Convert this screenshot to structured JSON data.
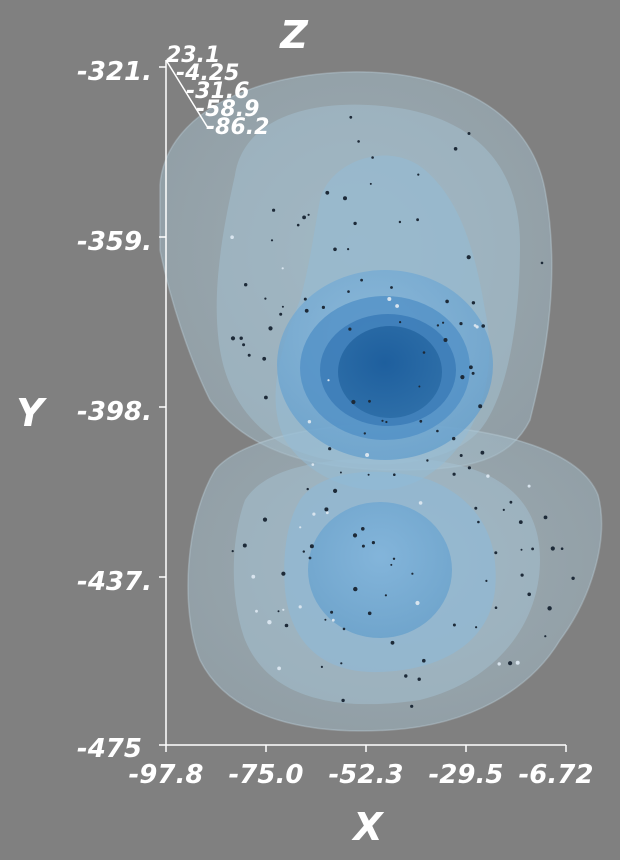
{
  "chart_data": {
    "type": "3d-isosurface",
    "title": "",
    "axes": {
      "x": {
        "label": "X",
        "ticks": [
          "-97.8",
          "-75.0",
          "-52.3",
          "-29.5",
          "-6.72"
        ],
        "range": [
          -97.8,
          -6.72
        ]
      },
      "y": {
        "label": "Y",
        "ticks": [
          "-321.",
          "-359.",
          "-398.",
          "-437.",
          "-475"
        ],
        "range": [
          -475,
          -321
        ]
      },
      "z": {
        "label": "Z",
        "ticks": [
          "23.1",
          "-4.25",
          "-31.6",
          "-58.9",
          "-86.2"
        ],
        "range": [
          -86.2,
          23.1
        ]
      }
    },
    "isosurface_levels": 5,
    "surfaces": [
      {
        "cx": -53.5,
        "cy": -375.3,
        "rx": 45.5,
        "ry": 22.1
      },
      {
        "cx": -51.8,
        "cy": -370.0,
        "rx": 32.0,
        "ry": 30.0
      },
      {
        "cx": -51.8,
        "cy": -380.0,
        "rx": 21.0,
        "ry": 20.0
      },
      {
        "cx": -52.0,
        "cy": -384.0,
        "rx": 15.0,
        "ry": 11.0
      },
      {
        "cx": -52.0,
        "cy": -385.0,
        "rx": 9.5,
        "ry": 8.0
      },
      {
        "cx": -52.0,
        "cy": -425.0,
        "rx": 35.0,
        "ry": 20.0
      },
      {
        "cx": -53.0,
        "cy": -440.0,
        "rx": 16.0,
        "ry": 14.0
      }
    ],
    "colors": {
      "background": "#808080",
      "levels": [
        "#a6c6d6",
        "#93bcd6",
        "#78add6",
        "#5b9ad0",
        "#2f6fae"
      ],
      "text": "#ffffff",
      "axis_line": "#ffffff"
    },
    "grid": false,
    "legend": "none"
  }
}
